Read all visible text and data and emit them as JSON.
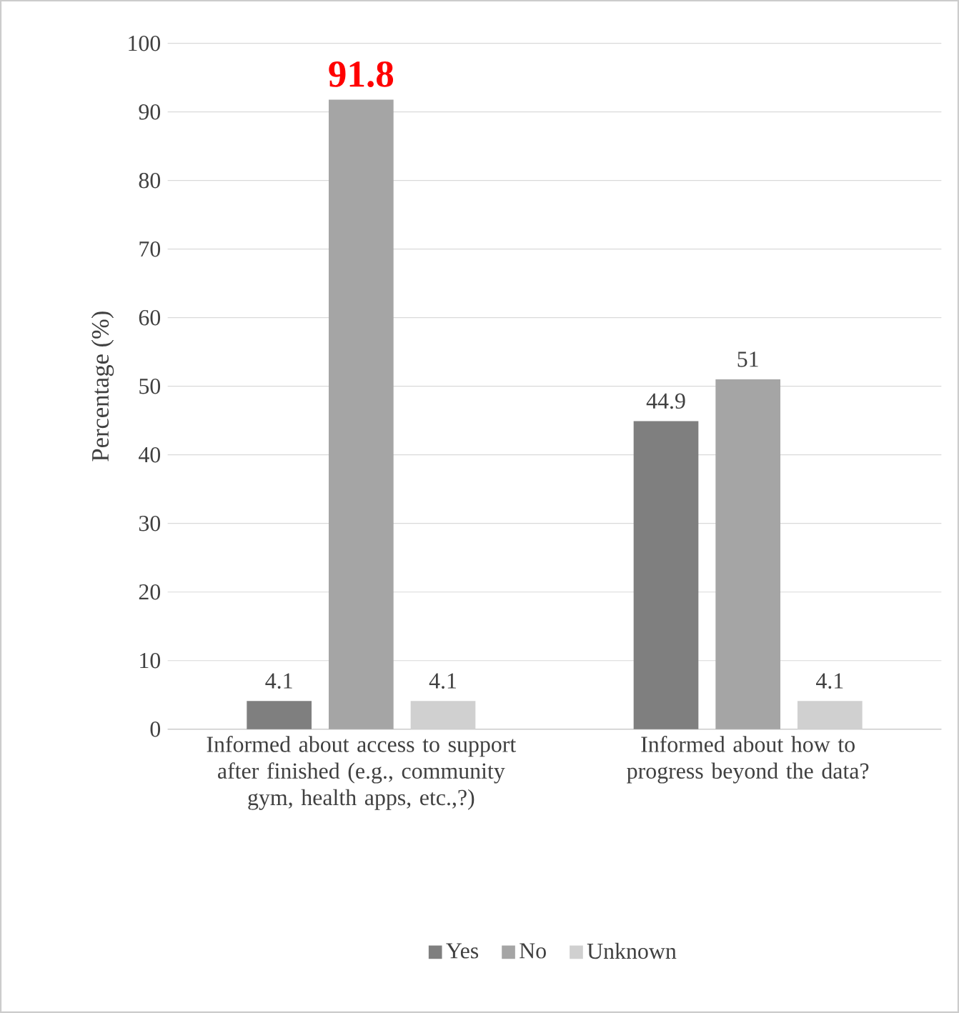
{
  "chart_data": {
    "type": "bar",
    "ylabel": "Percentage (%)",
    "categories": [
      "Informed about access to support after finished (e.g., community gym, health apps, etc.,?)",
      "Informed about how to progress beyond the data?"
    ],
    "series": [
      {
        "name": "Yes",
        "color": "#7f7f7f",
        "values": [
          4.1,
          44.9
        ],
        "value_labels": [
          "4.1",
          "44.9"
        ]
      },
      {
        "name": "No",
        "color": "#a5a5a5",
        "values": [
          91.8,
          51
        ],
        "value_labels": [
          null,
          "51"
        ]
      },
      {
        "name": "Unknown",
        "color": "#d0d0d0",
        "values": [
          4.1,
          4.1
        ],
        "value_labels": [
          "4.1",
          "4.1"
        ]
      }
    ],
    "annotations": [
      {
        "text": "91.8",
        "x": "Informed about access to support after finished (e.g., community gym, health apps, etc.,?)",
        "y": 91.8
      }
    ],
    "ylim": [
      0,
      100
    ],
    "yticks": [
      0,
      10,
      20,
      30,
      40,
      50,
      60,
      70,
      80,
      90,
      100
    ],
    "grid": "y",
    "legend": "bottom"
  }
}
